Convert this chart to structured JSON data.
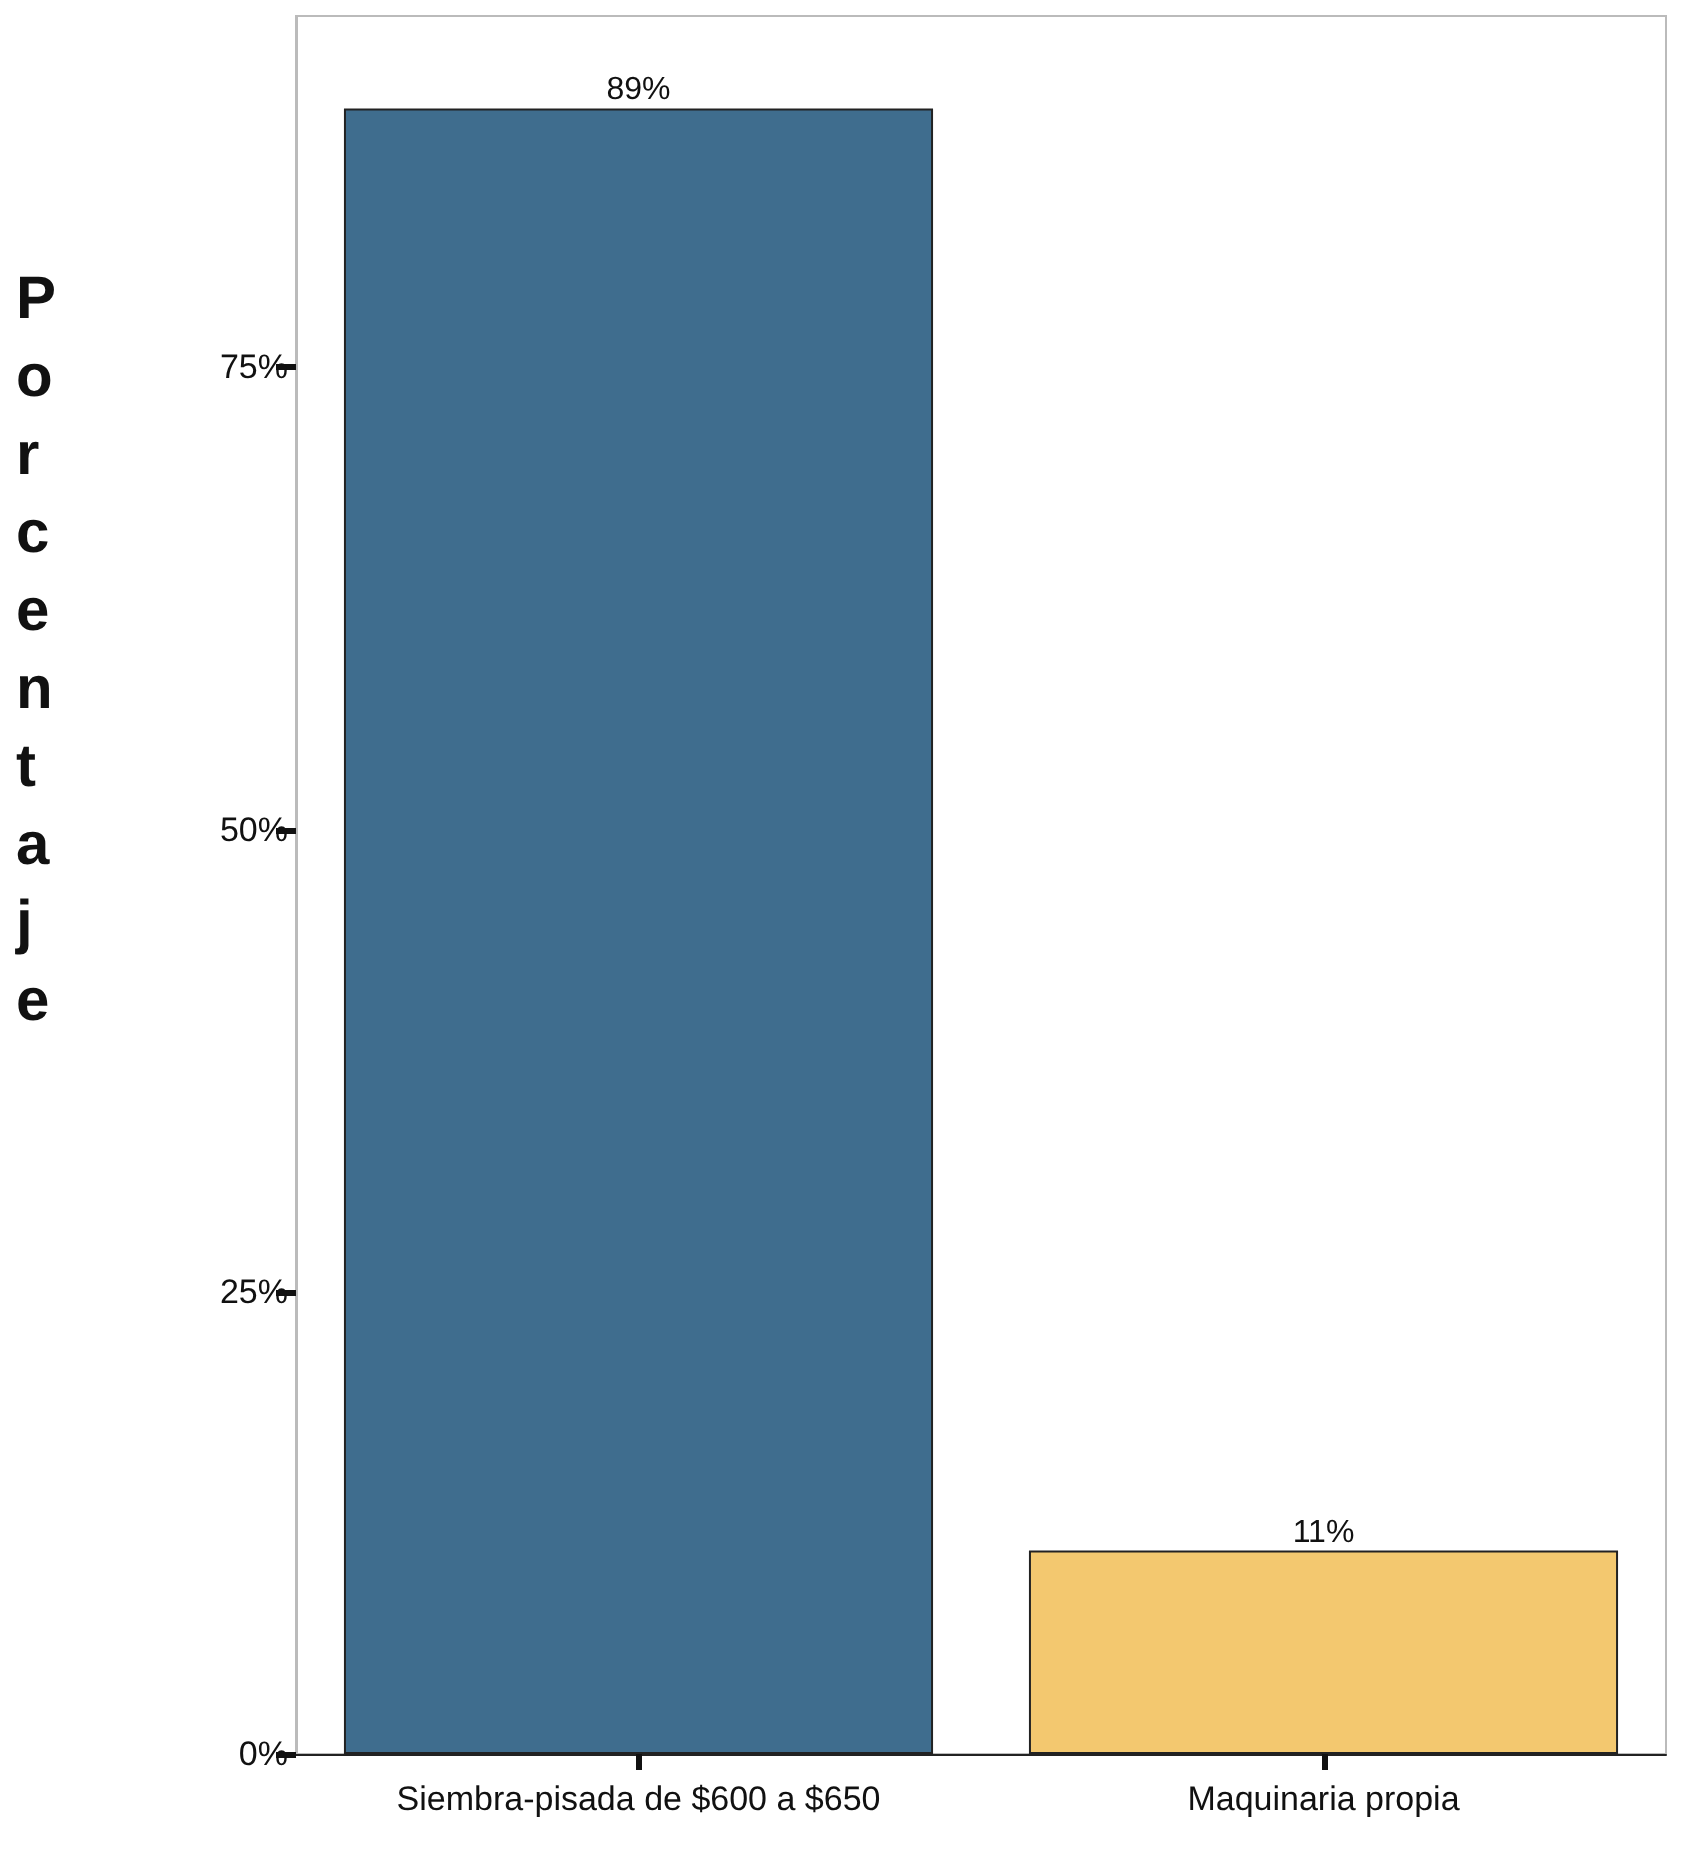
{
  "chart_data": {
    "type": "bar",
    "ylabel": "Porcentaje",
    "categories": [
      "Siembra-pisada de $600 a $650",
      "Maquinaria propia"
    ],
    "values": [
      89,
      11
    ],
    "colors": [
      "#3f6d8e",
      "#f3c86f"
    ],
    "value_labels": [
      "89%",
      "11%"
    ],
    "ylim": [
      0,
      94
    ],
    "yticks": [
      {
        "value": 0,
        "label": "0%"
      },
      {
        "value": 25,
        "label": "25%"
      },
      {
        "value": 50,
        "label": "50%"
      },
      {
        "value": 75,
        "label": "75%"
      }
    ],
    "grid": false
  }
}
